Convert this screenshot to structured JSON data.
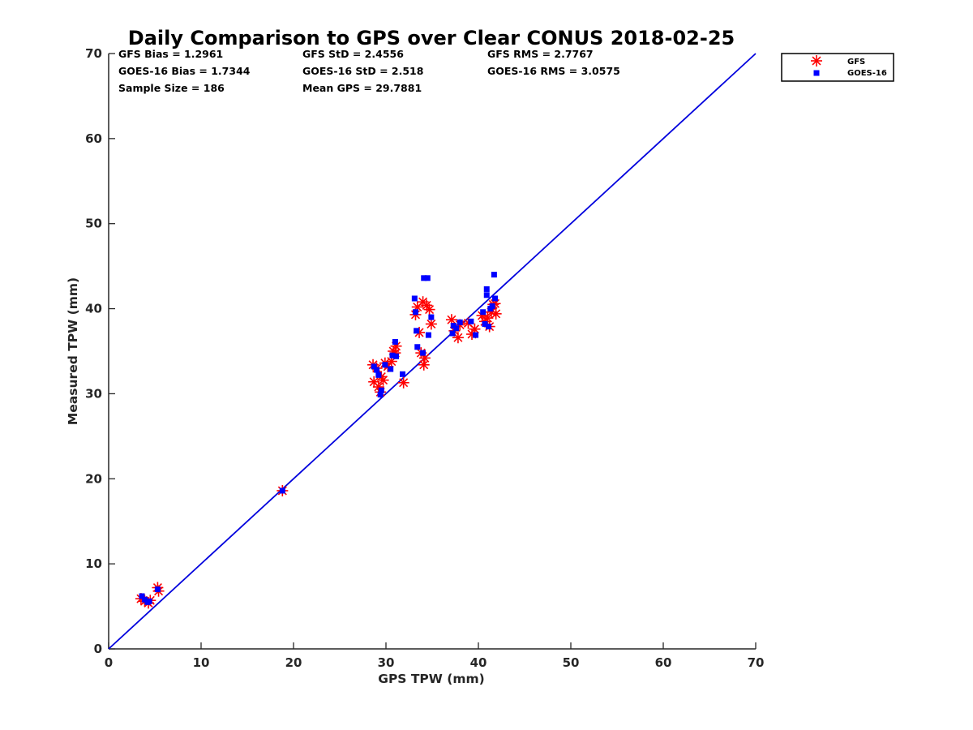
{
  "chart_data": {
    "type": "scatter",
    "title": "Daily Comparison to GPS over Clear CONUS 2018-02-25",
    "xlabel": "GPS TPW (mm)",
    "ylabel": "Measured TPW (mm)",
    "xlim": [
      0,
      70
    ],
    "ylim": [
      0,
      70
    ],
    "xticks": [
      0,
      10,
      20,
      30,
      40,
      50,
      60,
      70
    ],
    "yticks": [
      0,
      10,
      20,
      30,
      40,
      50,
      60,
      70
    ],
    "grid": false,
    "legend_position": "outside top-right",
    "stats": [
      [
        "GFS Bias = 1.2961",
        "GFS StD = 2.4556",
        "GFS RMS = 2.7767"
      ],
      [
        "GOES-16 Bias = 1.7344",
        "GOES-16 StD = 2.518",
        "GOES-16 RMS = 3.0575"
      ],
      [
        "Sample Size = 186",
        "Mean GPS = 29.7881"
      ]
    ],
    "reference_line": {
      "name": "1:1",
      "x": [
        0,
        70
      ],
      "y": [
        0,
        70
      ],
      "color": "#0000dd"
    },
    "series": [
      {
        "name": "GFS",
        "marker": "asterisk",
        "color": "#ff0000",
        "points": [
          [
            3.5,
            5.9
          ],
          [
            3.9,
            5.6
          ],
          [
            4.3,
            5.4
          ],
          [
            4.5,
            5.7
          ],
          [
            5.3,
            7.2
          ],
          [
            5.4,
            6.8
          ],
          [
            18.8,
            18.6
          ],
          [
            28.6,
            33.4
          ],
          [
            28.7,
            31.4
          ],
          [
            29.0,
            33.0
          ],
          [
            29.2,
            30.8
          ],
          [
            29.4,
            30.2
          ],
          [
            29.5,
            32.0
          ],
          [
            29.7,
            31.6
          ],
          [
            29.9,
            33.6
          ],
          [
            30.2,
            33.2
          ],
          [
            30.6,
            33.8
          ],
          [
            30.8,
            35.0
          ],
          [
            31.0,
            34.8
          ],
          [
            31.1,
            35.6
          ],
          [
            31.9,
            31.3
          ],
          [
            33.2,
            39.3
          ],
          [
            33.4,
            40.2
          ],
          [
            33.6,
            37.2
          ],
          [
            33.8,
            34.8
          ],
          [
            34.0,
            40.8
          ],
          [
            34.1,
            33.4
          ],
          [
            34.2,
            34.2
          ],
          [
            34.4,
            40.4
          ],
          [
            34.7,
            39.9
          ],
          [
            34.9,
            38.2
          ],
          [
            37.1,
            38.7
          ],
          [
            37.4,
            37.4
          ],
          [
            37.8,
            36.6
          ],
          [
            38.0,
            38.1
          ],
          [
            38.9,
            38.3
          ],
          [
            39.3,
            37.0
          ],
          [
            39.6,
            37.6
          ],
          [
            40.4,
            39.2
          ],
          [
            40.7,
            38.5
          ],
          [
            41.0,
            38.9
          ],
          [
            41.2,
            37.9
          ],
          [
            41.4,
            39.6
          ],
          [
            41.6,
            40.5
          ],
          [
            41.8,
            40.6
          ],
          [
            41.9,
            39.4
          ]
        ]
      },
      {
        "name": "GOES-16",
        "marker": "square",
        "color": "#0000ff",
        "points": [
          [
            3.6,
            6.2
          ],
          [
            3.9,
            5.8
          ],
          [
            4.2,
            5.5
          ],
          [
            4.4,
            5.6
          ],
          [
            5.3,
            7.0
          ],
          [
            18.8,
            18.6
          ],
          [
            28.7,
            33.2
          ],
          [
            29.0,
            32.8
          ],
          [
            29.2,
            32.2
          ],
          [
            29.4,
            29.9
          ],
          [
            29.5,
            30.4
          ],
          [
            29.9,
            33.4
          ],
          [
            30.5,
            32.9
          ],
          [
            30.7,
            34.5
          ],
          [
            31.0,
            36.1
          ],
          [
            31.1,
            34.4
          ],
          [
            31.8,
            32.3
          ],
          [
            33.1,
            41.2
          ],
          [
            33.2,
            39.6
          ],
          [
            33.3,
            37.4
          ],
          [
            33.4,
            35.5
          ],
          [
            34.0,
            34.8
          ],
          [
            34.1,
            43.6
          ],
          [
            34.5,
            43.6
          ],
          [
            34.6,
            36.9
          ],
          [
            34.9,
            39.0
          ],
          [
            37.2,
            37.1
          ],
          [
            37.3,
            38.0
          ],
          [
            37.6,
            37.7
          ],
          [
            38.0,
            38.4
          ],
          [
            39.2,
            38.5
          ],
          [
            39.7,
            36.9
          ],
          [
            40.5,
            39.6
          ],
          [
            40.7,
            38.2
          ],
          [
            40.9,
            42.3
          ],
          [
            40.9,
            41.6
          ],
          [
            41.1,
            37.9
          ],
          [
            41.3,
            40.0
          ],
          [
            41.5,
            40.3
          ],
          [
            41.7,
            44.0
          ],
          [
            41.8,
            41.2
          ]
        ]
      }
    ]
  }
}
